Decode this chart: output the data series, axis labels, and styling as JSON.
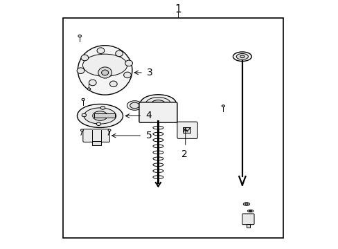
{
  "background_color": "#ffffff",
  "border_color": "#000000",
  "line_color": "#000000",
  "label_color": "#000000"
}
